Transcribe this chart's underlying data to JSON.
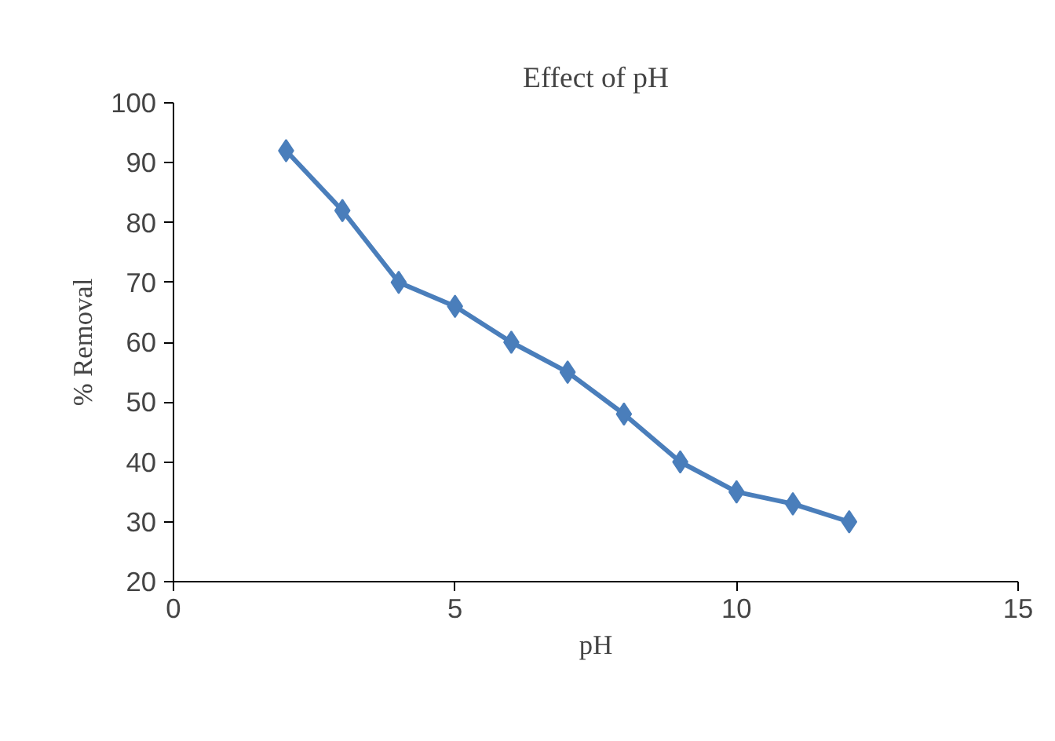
{
  "chart_data": {
    "type": "line",
    "title": "Effect of pH",
    "xlabel": "pH",
    "ylabel": "% Removal",
    "x": [
      2,
      3,
      4,
      5,
      6,
      7,
      8,
      9,
      10,
      11,
      12
    ],
    "series": [
      {
        "color": "#4a7ebb",
        "values": [
          92,
          82,
          70,
          66,
          60,
          55,
          48,
          40,
          35,
          33,
          30
        ]
      }
    ],
    "xlim": [
      0,
      15
    ],
    "xticks": [
      0,
      5,
      10,
      15
    ],
    "ylim": [
      20,
      100
    ],
    "yticks": [
      20,
      30,
      40,
      50,
      60,
      70,
      80,
      90,
      100
    ],
    "marker": "diamond",
    "line_style": "solid"
  }
}
